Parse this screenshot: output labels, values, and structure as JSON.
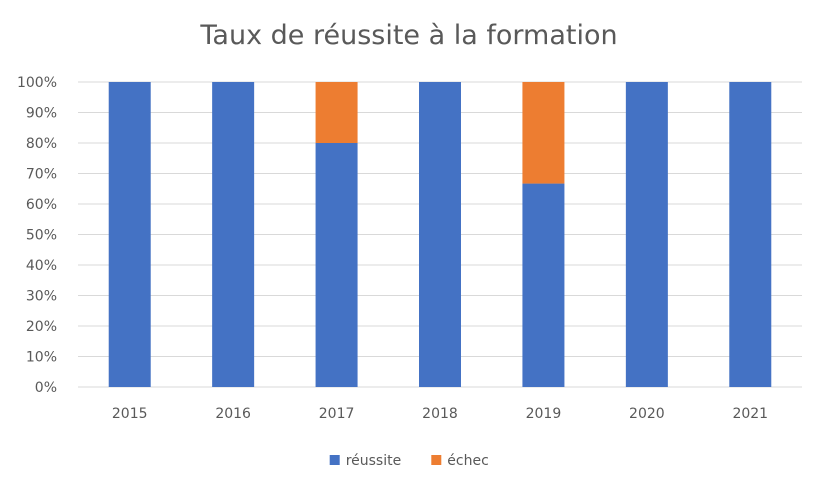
{
  "chart_data": {
    "type": "bar",
    "stacked": true,
    "title": "Taux de réussite à la formation",
    "xlabel": "",
    "ylabel": "",
    "categories": [
      "2015",
      "2016",
      "2017",
      "2018",
      "2019",
      "2020",
      "2021"
    ],
    "series": [
      {
        "name": "réussite",
        "color": "#4472C4",
        "values": [
          100,
          100,
          80,
          100,
          66.7,
          100,
          100
        ]
      },
      {
        "name": "échec",
        "color": "#ED7D31",
        "values": [
          0,
          0,
          20,
          0,
          33.3,
          0,
          0
        ]
      }
    ],
    "ylim": [
      0,
      100
    ],
    "yticks": [
      0,
      10,
      20,
      30,
      40,
      50,
      60,
      70,
      80,
      90,
      100
    ],
    "ytick_labels": [
      "0%",
      "10%",
      "20%",
      "30%",
      "40%",
      "50%",
      "60%",
      "70%",
      "80%",
      "90%",
      "100%"
    ],
    "grid": "horizontal",
    "legend_position": "bottom"
  }
}
